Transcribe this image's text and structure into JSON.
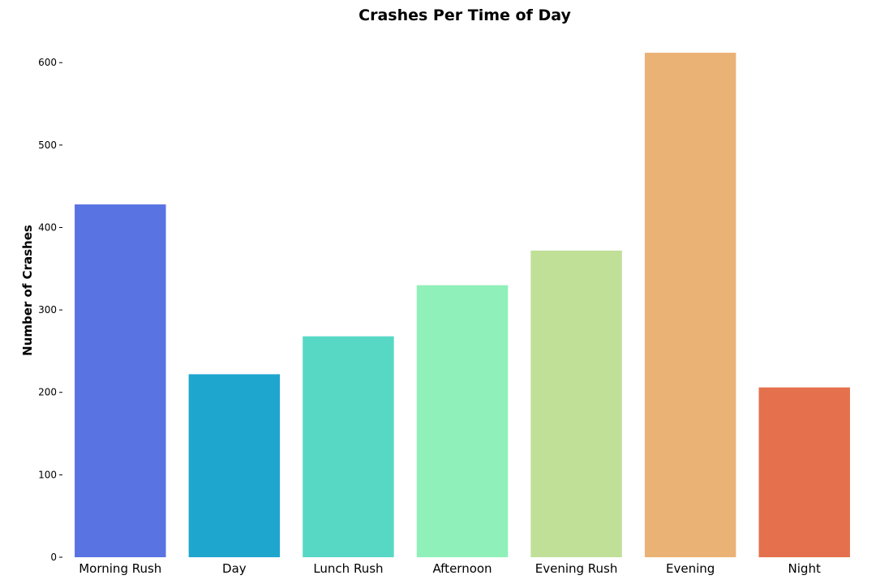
{
  "chart_data": {
    "type": "bar",
    "title": "Crashes Per Time of Day",
    "xlabel": "",
    "ylabel": "Number of Crashes",
    "categories": [
      "Morning Rush",
      "Day",
      "Lunch Rush",
      "Afternoon",
      "Evening Rush",
      "Evening",
      "Night"
    ],
    "values": [
      428,
      222,
      268,
      330,
      372,
      612,
      206
    ],
    "colors": [
      "#5973e3",
      "#1fa6cf",
      "#57d8c5",
      "#90f0b9",
      "#c0e098",
      "#ebb275",
      "#e5704d"
    ],
    "yticks": [
      0,
      100,
      200,
      300,
      400,
      500,
      600
    ],
    "ylim": [
      0,
      614
    ],
    "grid": false,
    "legend": "none"
  }
}
